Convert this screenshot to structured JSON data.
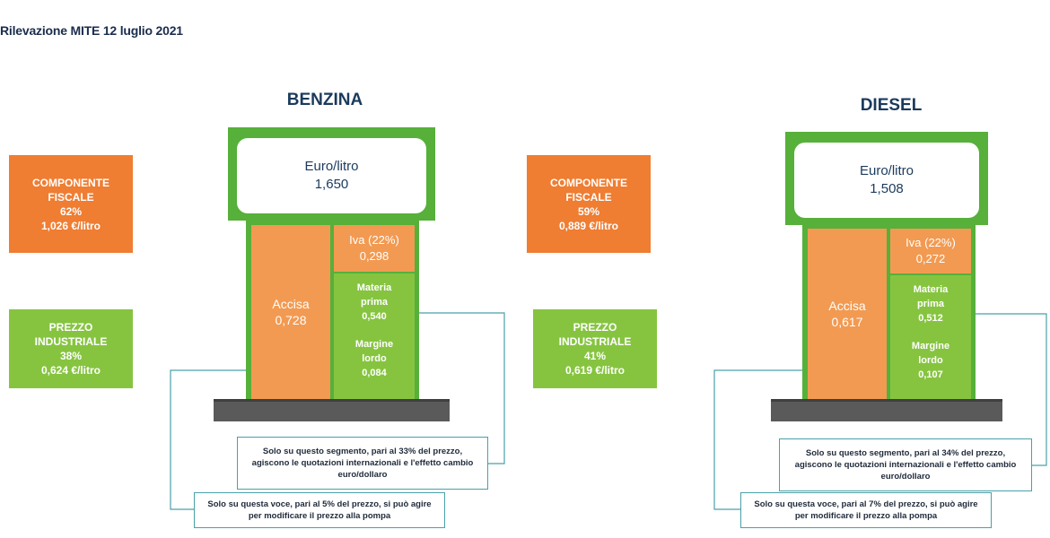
{
  "header": {
    "title": "Rilevazione MITE 12 luglio 2021"
  },
  "colors": {
    "fiscal": "#ef7d32",
    "industrial": "#86c440",
    "pump_frame": "#56b03a",
    "connector": "#4aa0a8"
  },
  "benzina": {
    "title": "BENZINA",
    "display": {
      "label": "Euro/litro",
      "value": "1,650"
    },
    "fiscal": {
      "line1": "COMPONENTE",
      "line2": "FISCALE",
      "percent": "62%",
      "amount": "1,026 €/litro"
    },
    "industrial": {
      "line1": "PREZZO",
      "line2": "INDUSTRIALE",
      "percent": "38%",
      "amount": "0,624 €/litro"
    },
    "accisa": {
      "label": "Accisa",
      "value": "0,728"
    },
    "iva": {
      "label": "Iva (22%)",
      "value": "0,298"
    },
    "materia": {
      "line1": "Materia",
      "line2": "prima",
      "value": "0,540"
    },
    "margine": {
      "line1": "Margine",
      "line2": "lordo",
      "value": "0,084"
    },
    "note_segment": {
      "line1": "Solo su questo segmento, pari al 33% del prezzo,",
      "line2": "agiscono le quotazioni internazionali e l'effetto cambio",
      "line3": "euro/dollaro"
    },
    "note_voice": {
      "line1": "Solo su questa voce, pari al 5% del prezzo, si può agire",
      "line2": "per modificare il prezzo alla pompa"
    }
  },
  "diesel": {
    "title": "DIESEL",
    "display": {
      "label": "Euro/litro",
      "value": "1,508"
    },
    "fiscal": {
      "line1": "COMPONENTE",
      "line2": "FISCALE",
      "percent": "59%",
      "amount": "0,889 €/litro"
    },
    "industrial": {
      "line1": "PREZZO",
      "line2": "INDUSTRIALE",
      "percent": "41%",
      "amount": "0,619  €/litro"
    },
    "accisa": {
      "label": "Accisa",
      "value": "0,617"
    },
    "iva": {
      "label": "Iva (22%)",
      "value": "0,272"
    },
    "materia": {
      "line1": "Materia",
      "line2": "prima",
      "value": "0,512"
    },
    "margine": {
      "line1": "Margine",
      "line2": "lordo",
      "value": "0,107"
    },
    "note_segment": {
      "line1": "Solo su questo segmento, pari al 34% del prezzo,",
      "line2": "agiscono le quotazioni internazionali e l'effetto cambio",
      "line3": "euro/dollaro"
    },
    "note_voice": {
      "line1": "Solo su questa voce, pari al 7% del prezzo, si può agire",
      "line2": "per modificare il prezzo alla pompa"
    }
  }
}
